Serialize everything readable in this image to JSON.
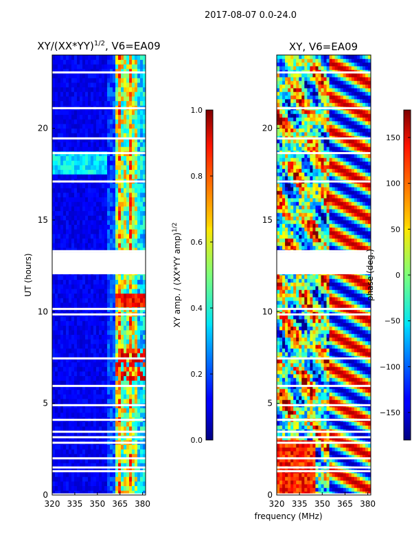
{
  "figure": {
    "suptitle": "2017-08-07 0.0-24.0",
    "xlabel": "frequency (MHz)"
  },
  "chart_data": [
    {
      "type": "heatmap",
      "title_main": "XY/(XX*YY)",
      "title_sup": "1/2",
      "title_rest": ", V6=EA09",
      "xlabel": "frequency (MHz)",
      "ylabel": "UT (hours)",
      "xlim": [
        320,
        382
      ],
      "ylim": [
        0,
        24
      ],
      "xticks": [
        320,
        335,
        350,
        365,
        380
      ],
      "yticks": [
        0,
        5,
        10,
        15,
        20
      ],
      "colorbar": {
        "label": "XY amp. / (XX*YY amp)",
        "label_sup": "1/2",
        "range": [
          0.0,
          1.0
        ],
        "ticks": [
          "0.0",
          "0.2",
          "0.4",
          "0.6",
          "0.8",
          "1.0"
        ]
      },
      "gaps_hours": [
        0.03,
        1.3,
        1.5,
        2.0,
        2.85,
        3.15,
        3.45,
        4.1,
        4.9,
        5.95,
        7.45,
        9.85,
        10.15,
        12.1,
        13.05,
        13.3,
        17.1,
        18.65,
        19.45,
        21.1,
        23.05
      ],
      "blank_band_hours": [
        12.05,
        13.25
      ]
    },
    {
      "type": "heatmap",
      "title": "XY, V6=EA09",
      "xlim": [
        320,
        382
      ],
      "ylim": [
        0,
        24
      ],
      "xticks": [
        320,
        335,
        350,
        365,
        380
      ],
      "yticks": [
        0,
        5,
        10,
        15,
        20
      ],
      "colorbar": {
        "label": "phase (deg.)",
        "range": [
          -180,
          180
        ],
        "ticks": [
          "−150",
          "−100",
          "−50",
          "0",
          "50",
          "100",
          "150"
        ]
      },
      "gaps_hours": [
        0.03,
        1.3,
        1.5,
        2.0,
        2.85,
        3.15,
        3.45,
        4.1,
        4.9,
        5.95,
        7.45,
        9.85,
        10.15,
        12.1,
        13.05,
        13.3,
        17.1,
        18.65,
        19.45,
        21.1,
        23.05
      ],
      "blank_band_hours": [
        12.05,
        13.25
      ]
    }
  ]
}
